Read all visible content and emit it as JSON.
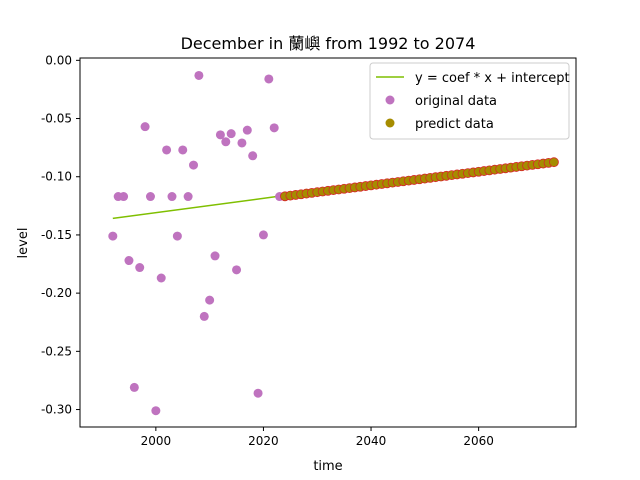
{
  "chart_data": {
    "type": "scatter",
    "title": "December in 蘭嶼 from 1992 to 2074",
    "xlabel": "time",
    "ylabel": "level",
    "xlim": [
      1985.9,
      2078.1
    ],
    "ylim": [
      -0.315,
      0.002
    ],
    "xticks": [
      2000,
      2020,
      2040,
      2060
    ],
    "yticks": [
      0.0,
      -0.05,
      -0.1,
      -0.15,
      -0.2,
      -0.25,
      -0.3
    ],
    "ytick_labels": [
      "0.00",
      "-0.05",
      "-0.10",
      "-0.15",
      "-0.20",
      "-0.25",
      "-0.30"
    ],
    "legend_position": "upper-right",
    "grid": false,
    "series": [
      {
        "name": "y = coef * x + intercept",
        "kind": "line",
        "color": "#7fbf00",
        "x": [
          1992,
          2023
        ],
        "y": [
          -0.1358,
          -0.1167
        ]
      },
      {
        "name": "original data",
        "kind": "scatter",
        "color": "#bf73bf",
        "x": [
          1992,
          1993,
          1994,
          1995,
          1996,
          1997,
          1998,
          1999,
          2000,
          2001,
          2002,
          2003,
          2004,
          2005,
          2006,
          2007,
          2008,
          2009,
          2010,
          2011,
          2012,
          2013,
          2014,
          2015,
          2016,
          2017,
          2018,
          2019,
          2020,
          2021,
          2022,
          2023
        ],
        "y": [
          -0.151,
          -0.117,
          -0.117,
          -0.172,
          -0.281,
          -0.178,
          -0.057,
          -0.117,
          -0.301,
          -0.187,
          -0.077,
          -0.117,
          -0.151,
          -0.077,
          -0.117,
          -0.09,
          -0.013,
          -0.22,
          -0.206,
          -0.168,
          -0.064,
          -0.07,
          -0.063,
          -0.18,
          -0.071,
          -0.06,
          -0.082,
          -0.286,
          -0.15,
          -0.016,
          -0.058,
          -0.117
        ]
      },
      {
        "name": "predict data",
        "kind": "scatter",
        "color": "#a68c00",
        "edge_color": "#d62728",
        "x_start": 2024,
        "x_end": 2074,
        "y_start": -0.1168,
        "y_end": -0.0875
      }
    ]
  }
}
